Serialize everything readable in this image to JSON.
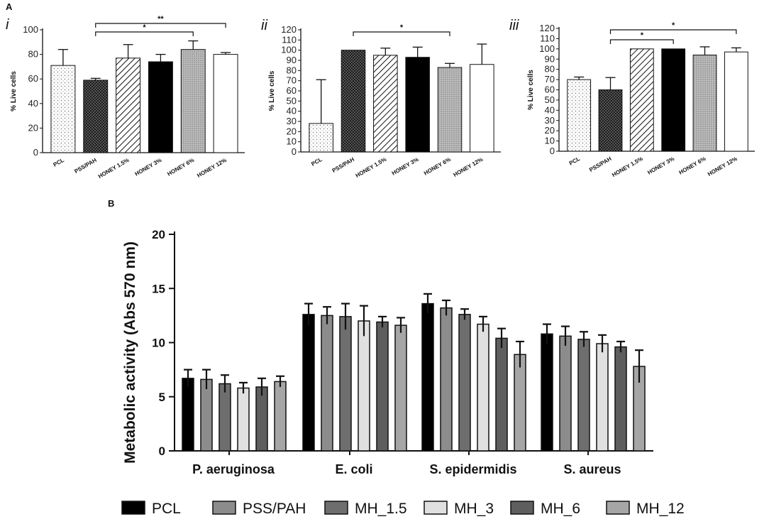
{
  "panel_a_label": "A",
  "panel_b_label": "B",
  "chart_data": [
    {
      "type": "bar",
      "panel": "i",
      "categories": [
        "PCL",
        "PSS/PAH",
        "HONEY 1.5%",
        "HONEY 3%",
        "HONEY 6%",
        "HONEY 12%"
      ],
      "values": [
        71,
        59,
        77,
        74,
        84,
        80
      ],
      "errors": [
        13,
        1.5,
        11,
        6,
        7,
        1.5
      ],
      "ylabel": "% Live cells",
      "ylim": [
        0,
        100
      ],
      "yticks": [
        0,
        20,
        40,
        60,
        80,
        100
      ],
      "significance": [
        {
          "from": "PSS/PAH",
          "to": "HONEY 6%",
          "label": "*"
        },
        {
          "from": "PSS/PAH",
          "to": "HONEY 12%",
          "label": "**"
        }
      ]
    },
    {
      "type": "bar",
      "panel": "ii",
      "categories": [
        "PCL",
        "PSS/PAH",
        "HONEY 1.5%",
        "HONEY 3%",
        "HONEY 6%",
        "HONEY 12%"
      ],
      "values": [
        28,
        100,
        95,
        93,
        83,
        86
      ],
      "errors": [
        43,
        0,
        7,
        10,
        4,
        20
      ],
      "ylabel": "% Live cells",
      "ylim": [
        0,
        120
      ],
      "yticks": [
        0,
        10,
        20,
        30,
        40,
        50,
        60,
        70,
        80,
        90,
        100,
        110,
        120
      ],
      "significance": [
        {
          "from": "PSS/PAH",
          "to": "HONEY 6%",
          "label": "*"
        }
      ]
    },
    {
      "type": "bar",
      "panel": "iii",
      "categories": [
        "PCL",
        "PSS/PAH",
        "HONEY 1.5%",
        "HONEY 3%",
        "HONEY 6%",
        "HONEY 12%"
      ],
      "values": [
        70,
        60,
        100,
        100,
        94,
        97
      ],
      "errors": [
        2.5,
        12,
        0,
        0,
        8,
        4
      ],
      "ylabel": "% Live cells",
      "ylim": [
        0,
        120
      ],
      "yticks": [
        0,
        10,
        20,
        30,
        40,
        50,
        60,
        70,
        80,
        90,
        100,
        110,
        120
      ],
      "significance": [
        {
          "from": "PSS/PAH",
          "to": "HONEY 3%",
          "label": "*"
        },
        {
          "from": "PSS/PAH",
          "to": "HONEY 12%",
          "label": "*"
        }
      ]
    },
    {
      "type": "bar",
      "panel": "B",
      "categories": [
        "P. aeruginosa",
        "E. coli",
        "S. epidermidis",
        "S. aureus"
      ],
      "series": [
        {
          "name": "PCL",
          "color": "#000000",
          "values": [
            6.7,
            12.6,
            13.6,
            10.8
          ],
          "errors": [
            0.8,
            1.0,
            0.9,
            0.9
          ]
        },
        {
          "name": "PSS/PAH",
          "color": "#8c8c8c",
          "values": [
            6.6,
            12.5,
            13.2,
            10.6
          ],
          "errors": [
            0.9,
            0.8,
            0.7,
            0.9
          ]
        },
        {
          "name": "MH_1.5",
          "color": "#6e6e6e",
          "values": [
            6.2,
            12.4,
            12.6,
            10.3
          ],
          "errors": [
            0.8,
            1.2,
            0.5,
            0.7
          ]
        },
        {
          "name": "MH_3",
          "color": "#e0e0e0",
          "values": [
            5.8,
            12.0,
            11.7,
            9.9
          ],
          "errors": [
            0.5,
            1.4,
            0.7,
            0.8
          ]
        },
        {
          "name": "MH_6",
          "color": "#5e5e5e",
          "values": [
            5.9,
            11.9,
            10.4,
            9.6
          ],
          "errors": [
            0.8,
            0.5,
            0.9,
            0.5
          ]
        },
        {
          "name": "MH_12",
          "color": "#a6a6a6",
          "values": [
            6.4,
            11.6,
            8.9,
            7.8
          ],
          "errors": [
            0.5,
            0.7,
            1.2,
            1.5
          ]
        }
      ],
      "ylabel": "Metabolic activity (Abs 570 nm)",
      "ylim": [
        0,
        20
      ],
      "yticks": [
        0,
        5,
        10,
        15,
        20
      ]
    }
  ]
}
